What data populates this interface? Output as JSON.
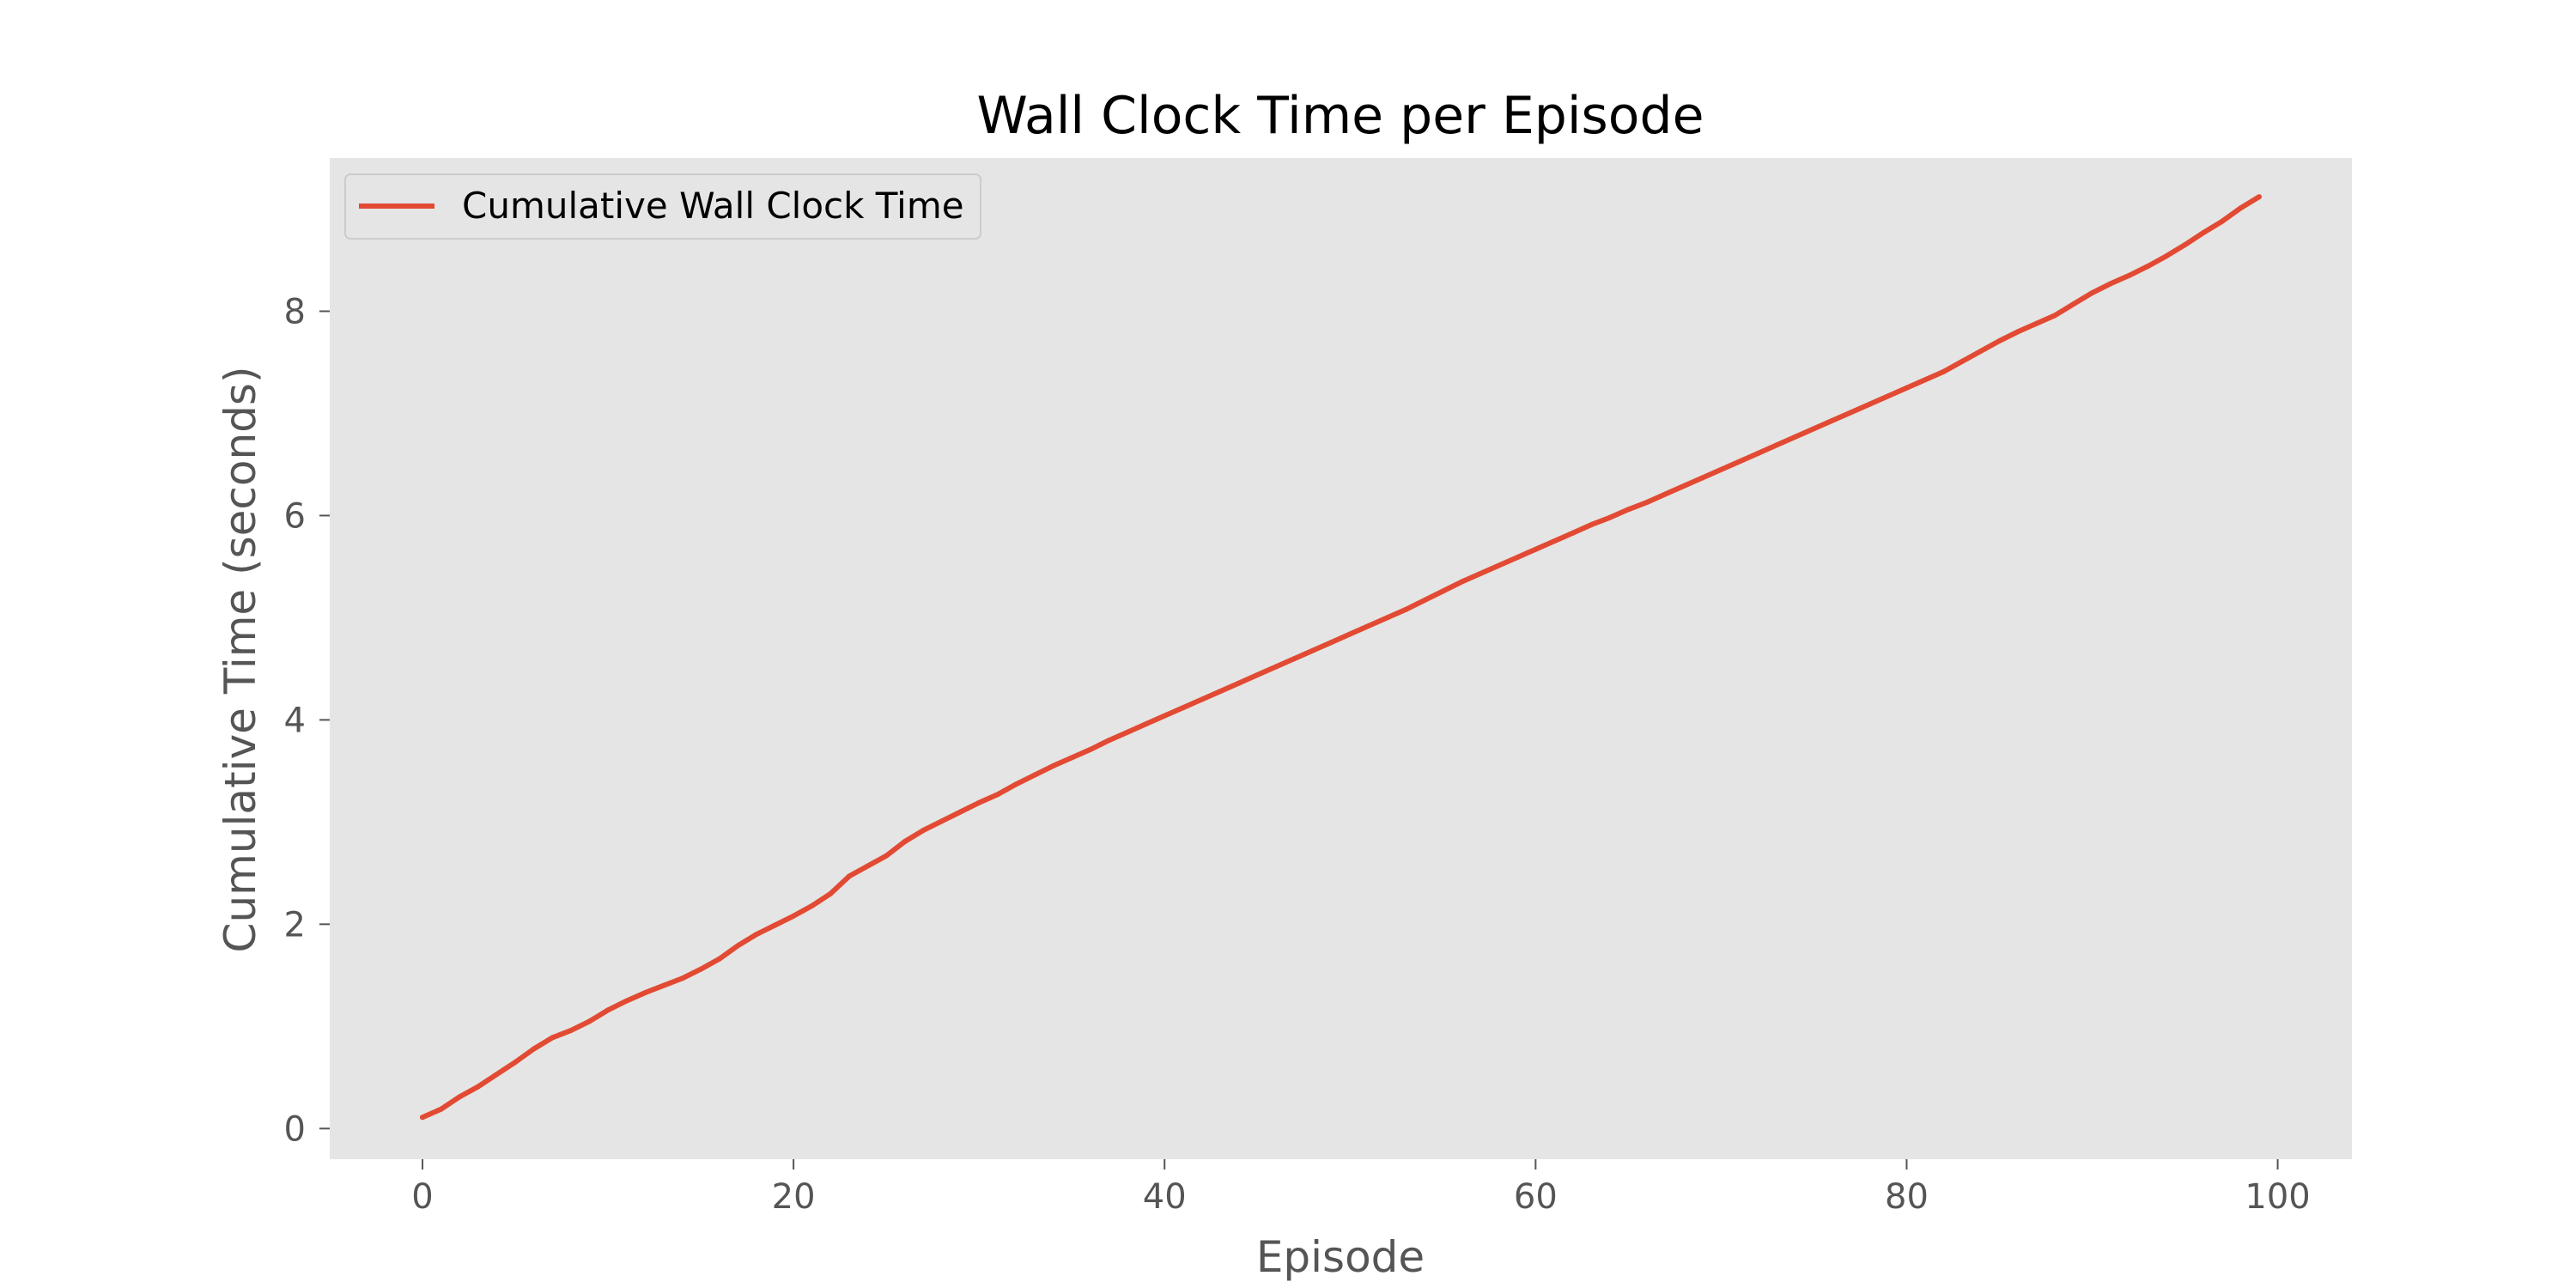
{
  "chart_data": {
    "type": "line",
    "title": "Wall Clock Time per Episode",
    "xlabel": "Episode",
    "ylabel": "Cumulative Time (seconds)",
    "xlim": [
      -5,
      104
    ],
    "ylim": [
      -0.3,
      9.5
    ],
    "xticks": [
      0,
      20,
      40,
      60,
      80,
      100
    ],
    "yticks": [
      0,
      2,
      4,
      6,
      8
    ],
    "grid": false,
    "legend_position": "upper-left",
    "colors": {
      "line": "#E24A33",
      "plot_bg": "#E5E5E5",
      "legend_bg": "#E5E5E5",
      "legend_border": "#CCCCCC",
      "tick": "#555555"
    },
    "series": [
      {
        "name": "Cumulative Wall Clock Time",
        "x": [
          0,
          1,
          2,
          3,
          4,
          5,
          6,
          7,
          8,
          9,
          10,
          11,
          12,
          13,
          14,
          15,
          16,
          17,
          18,
          19,
          20,
          21,
          22,
          23,
          24,
          25,
          26,
          27,
          28,
          29,
          30,
          31,
          32,
          33,
          34,
          35,
          36,
          37,
          38,
          39,
          40,
          41,
          42,
          43,
          44,
          45,
          46,
          47,
          48,
          49,
          50,
          51,
          52,
          53,
          54,
          55,
          56,
          57,
          58,
          59,
          60,
          61,
          62,
          63,
          64,
          65,
          66,
          67,
          68,
          69,
          70,
          71,
          72,
          73,
          74,
          75,
          76,
          77,
          78,
          79,
          80,
          81,
          82,
          83,
          84,
          85,
          86,
          87,
          88,
          89,
          90,
          91,
          92,
          93,
          94,
          95,
          96,
          97,
          98,
          99
        ],
        "y": [
          0.11,
          0.19,
          0.31,
          0.41,
          0.53,
          0.65,
          0.78,
          0.89,
          0.96,
          1.05,
          1.16,
          1.25,
          1.33,
          1.4,
          1.47,
          1.56,
          1.66,
          1.79,
          1.9,
          1.99,
          2.08,
          2.18,
          2.3,
          2.47,
          2.57,
          2.67,
          2.81,
          2.92,
          3.01,
          3.1,
          3.19,
          3.27,
          3.37,
          3.46,
          3.55,
          3.63,
          3.71,
          3.8,
          3.88,
          3.96,
          4.04,
          4.12,
          4.2,
          4.28,
          4.36,
          4.44,
          4.52,
          4.6,
          4.68,
          4.76,
          4.84,
          4.92,
          5.0,
          5.08,
          5.17,
          5.26,
          5.35,
          5.43,
          5.51,
          5.59,
          5.67,
          5.75,
          5.83,
          5.91,
          5.98,
          6.06,
          6.13,
          6.21,
          6.29,
          6.37,
          6.45,
          6.53,
          6.61,
          6.69,
          6.77,
          6.85,
          6.93,
          7.01,
          7.09,
          7.17,
          7.25,
          7.33,
          7.41,
          7.51,
          7.61,
          7.71,
          7.8,
          7.88,
          7.96,
          8.07,
          8.18,
          8.27,
          8.35,
          8.44,
          8.54,
          8.65,
          8.77,
          8.88,
          9.01,
          9.12
        ]
      }
    ]
  }
}
